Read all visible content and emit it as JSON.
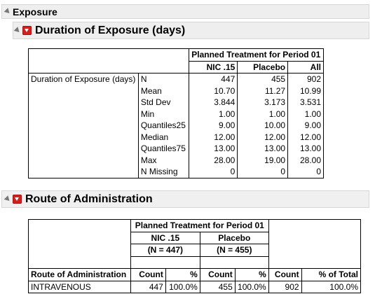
{
  "report": {
    "title": "Exposure"
  },
  "exposure": {
    "title": "Duration of Exposure (days)",
    "group_header": "Planned Treatment for Period 01",
    "columns": [
      "NIC .15",
      "Placebo",
      "All"
    ],
    "row_group": "Duration of Exposure (days)",
    "rows": [
      {
        "stat": "N",
        "v": [
          "447",
          "455",
          "902"
        ]
      },
      {
        "stat": "Mean",
        "v": [
          "10.70",
          "11.27",
          "10.99"
        ]
      },
      {
        "stat": "Std Dev",
        "v": [
          "3.844",
          "3.173",
          "3.531"
        ]
      },
      {
        "stat": "Min",
        "v": [
          "1.00",
          "1.00",
          "1.00"
        ]
      },
      {
        "stat": "Quantiles25",
        "v": [
          "9.00",
          "10.00",
          "9.00"
        ]
      },
      {
        "stat": "Median",
        "v": [
          "12.00",
          "12.00",
          "12.00"
        ]
      },
      {
        "stat": "Quantiles75",
        "v": [
          "13.00",
          "13.00",
          "13.00"
        ]
      },
      {
        "stat": "Max",
        "v": [
          "28.00",
          "19.00",
          "28.00"
        ]
      },
      {
        "stat": "N Missing",
        "v": [
          "0",
          "0",
          "0"
        ]
      }
    ]
  },
  "route": {
    "title": "Route of Administration",
    "group_header": "Planned Treatment for Period 01",
    "groups": [
      {
        "name": "NIC .15",
        "n": "(N = 447)"
      },
      {
        "name": "Placebo",
        "n": "(N = 455)"
      }
    ],
    "row_header": "Route of Administration",
    "sub_headers": [
      "Count",
      "%",
      "Count",
      "%",
      "Count",
      "% of Total"
    ],
    "rows": [
      {
        "label": "INTRAVENOUS",
        "v": [
          "447",
          "100.0%",
          "455",
          "100.0%",
          "902",
          "100.0%"
        ]
      }
    ]
  }
}
